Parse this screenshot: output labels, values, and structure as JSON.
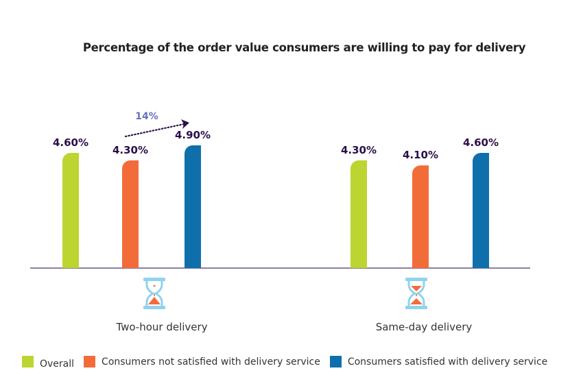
{
  "chart_data": {
    "type": "bar",
    "title": "Percentage of the order value consumers are willing to pay for delivery",
    "categories": [
      "Two-hour delivery",
      "Same-day delivery"
    ],
    "category_icons": [
      "hourglass-empty-top-icon",
      "hourglass-half-icon"
    ],
    "series": [
      {
        "name": "Overall",
        "color": "#bcd531",
        "values": [
          4.6,
          4.3
        ],
        "labels": [
          "4.60%",
          "4.30%"
        ]
      },
      {
        "name": "Consumers not satisfied with delivery service",
        "color": "#f26c3a",
        "values": [
          4.3,
          4.1
        ],
        "labels": [
          "4.30%",
          "4.10%"
        ]
      },
      {
        "name": "Consumers satisfied with delivery service",
        "color": "#0e6fab",
        "values": [
          4.9,
          4.6
        ],
        "labels": [
          "4.90%",
          "4.60%"
        ]
      }
    ],
    "annotations": [
      {
        "text": "14%",
        "category": "Two-hour delivery",
        "from_series": 1,
        "to_series": 2,
        "type": "dotted-arrow"
      }
    ],
    "xlabel": "",
    "ylabel": "",
    "ylim": [
      0,
      4.9
    ],
    "grid": false,
    "legend_position": "bottom-left",
    "colors": {
      "axis": "#8e7fa6",
      "value_label": "#2b0f4a",
      "annotation": "#6a6fbf",
      "hourglass_frame": "#8fd3ef",
      "hourglass_sand": "#f26c3a"
    }
  }
}
